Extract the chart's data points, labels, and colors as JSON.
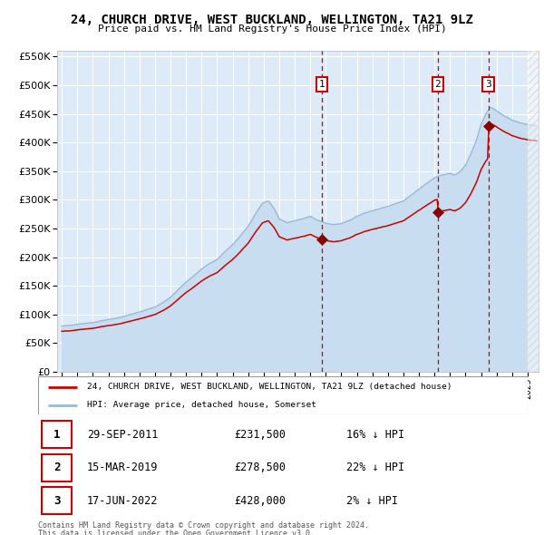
{
  "title": "24, CHURCH DRIVE, WEST BUCKLAND, WELLINGTON, TA21 9LZ",
  "subtitle": "Price paid vs. HM Land Registry's House Price Index (HPI)",
  "legend_line1": "24, CHURCH DRIVE, WEST BUCKLAND, WELLINGTON, TA21 9LZ (detached house)",
  "legend_line2": "HPI: Average price, detached house, Somerset",
  "transactions": [
    {
      "num": 1,
      "date": "29-SEP-2011",
      "price": 231500,
      "pct": "16%",
      "dir": "↓"
    },
    {
      "num": 2,
      "date": "15-MAR-2019",
      "price": 278500,
      "pct": "22%",
      "dir": "↓"
    },
    {
      "num": 3,
      "date": "17-JUN-2022",
      "price": 428000,
      "pct": "2%",
      "dir": "↓"
    }
  ],
  "t1": 2011.747,
  "p1": 231500,
  "t2": 2019.204,
  "p2": 278500,
  "t3": 2022.463,
  "p3": 428000,
  "footnote1": "Contains HM Land Registry data © Crown copyright and database right 2024.",
  "footnote2": "This data is licensed under the Open Government Licence v3.0.",
  "ylim": [
    0,
    560000
  ],
  "yticks": [
    0,
    50000,
    100000,
    150000,
    200000,
    250000,
    300000,
    350000,
    400000,
    450000,
    500000,
    550000
  ],
  "xlim_start": 1994.7,
  "xlim_end": 2025.7,
  "hpi_color": "#9ab8d8",
  "hpi_fill_color": "#c8ddf0",
  "price_color": "#cc0000",
  "bg_color": "#ddeaf7",
  "grid_color": "#ffffff",
  "dashed_line_color": "#cc0000",
  "box_color": "#cc0000"
}
